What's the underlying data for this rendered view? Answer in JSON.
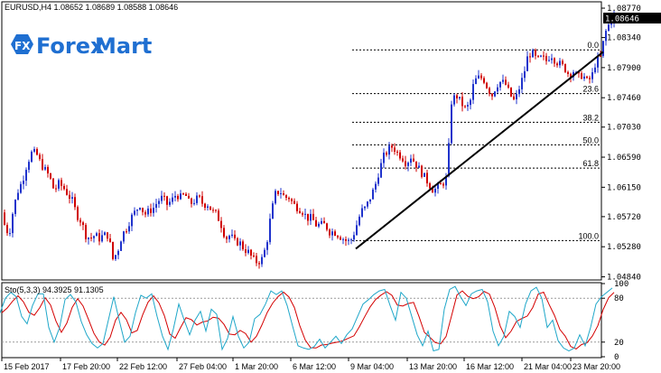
{
  "symbol_header": "EURUSD,H4  1.08652 1.08689 1.08588 1.08646",
  "logo": {
    "mark": "FX",
    "brand_a": "Forex",
    "brand_b": "Mart"
  },
  "current_price": "1.08646",
  "colors": {
    "up": "#1f33cc",
    "down": "#d00000",
    "main_line": "#1fa7c9",
    "signal_line": "#d40000",
    "trendline": "#000000",
    "logo_blue": "#1f6fd1"
  },
  "price_axis": [
    "1.08770",
    "1.08340",
    "1.07900",
    "1.07460",
    "1.07030",
    "1.06590",
    "1.06150",
    "1.05720",
    "1.05280",
    "1.04840"
  ],
  "fib_levels": [
    {
      "label": "0.0",
      "value": 1.0816
    },
    {
      "label": "23.6",
      "value": 1.0752
    },
    {
      "label": "38.2",
      "value": 1.071
    },
    {
      "label": "50.0",
      "value": 1.0677
    },
    {
      "label": "61.8",
      "value": 1.0643
    },
    {
      "label": "100.0",
      "value": 1.0537
    }
  ],
  "stochastic": {
    "label": "Sto(5,3,3) 94.3925 91.1305",
    "axis": [
      "100",
      "80",
      "20",
      "0"
    ]
  },
  "time_axis": [
    "15 Feb 2017",
    "17 Feb 20:00",
    "22 Feb 12:00",
    "27 Feb 04:00",
    "1 Mar 20:00",
    "6 Mar 12:00",
    "9 Mar 04:00",
    "13 Mar 20:00",
    "16 Mar 12:00",
    "21 Mar 04:00",
    "23 Mar 20:00"
  ],
  "chart_data": {
    "type": "candlestick",
    "symbol": "EURUSD",
    "timeframe": "H4",
    "ylim": [
      1.0482,
      1.0881
    ],
    "last_bar": {
      "open": 1.08652,
      "high": 1.08689,
      "low": 1.08588,
      "close": 1.08646
    },
    "close_path": [
      [
        0,
        1.059
      ],
      [
        5,
        1.056
      ],
      [
        10,
        1.0545
      ],
      [
        15,
        1.0585
      ],
      [
        20,
        1.061
      ],
      [
        25,
        1.0625
      ],
      [
        30,
        1.065
      ],
      [
        35,
        1.0665
      ],
      [
        40,
        1.0665
      ],
      [
        45,
        1.065
      ],
      [
        50,
        1.064
      ],
      [
        55,
        1.063
      ],
      [
        60,
        1.061
      ],
      [
        65,
        1.062
      ],
      [
        70,
        1.0615
      ],
      [
        75,
        1.0605
      ],
      [
        80,
        1.0595
      ],
      [
        85,
        1.0575
      ],
      [
        90,
        1.0565
      ],
      [
        95,
        1.0545
      ],
      [
        100,
        1.054
      ],
      [
        105,
        1.0545
      ],
      [
        110,
        1.054
      ],
      [
        115,
        1.0545
      ],
      [
        120,
        1.0545
      ],
      [
        125,
        1.051
      ],
      [
        130,
        1.052
      ],
      [
        135,
        1.0545
      ],
      [
        140,
        1.0555
      ],
      [
        145,
        1.057
      ],
      [
        150,
        1.058
      ],
      [
        155,
        1.059
      ],
      [
        160,
        1.0575
      ],
      [
        165,
        1.058
      ],
      [
        170,
        1.0585
      ],
      [
        175,
        1.0595
      ],
      [
        180,
        1.06
      ],
      [
        185,
        1.059
      ],
      [
        190,
        1.0595
      ],
      [
        195,
        1.0605
      ],
      [
        200,
        1.06
      ],
      [
        205,
        1.0605
      ],
      [
        210,
        1.059
      ],
      [
        215,
        1.0595
      ],
      [
        220,
        1.06
      ],
      [
        225,
        1.059
      ],
      [
        230,
        1.059
      ],
      [
        235,
        1.058
      ],
      [
        240,
        1.0575
      ],
      [
        245,
        1.056
      ],
      [
        250,
        1.054
      ],
      [
        255,
        1.0545
      ],
      [
        260,
        1.0535
      ],
      [
        265,
        1.0535
      ],
      [
        270,
        1.0525
      ],
      [
        275,
        1.052
      ],
      [
        280,
        1.051
      ],
      [
        285,
        1.0505
      ],
      [
        290,
        1.051
      ],
      [
        295,
        1.053
      ],
      [
        300,
        1.0575
      ],
      [
        305,
        1.0605
      ],
      [
        310,
        1.061
      ],
      [
        315,
        1.06
      ],
      [
        320,
        1.06
      ],
      [
        325,
        1.059
      ],
      [
        330,
        1.0585
      ],
      [
        335,
        1.058
      ],
      [
        340,
        1.057
      ],
      [
        345,
        1.057
      ],
      [
        350,
        1.056
      ],
      [
        355,
        1.056
      ],
      [
        360,
        1.056
      ],
      [
        365,
        1.055
      ],
      [
        370,
        1.055
      ],
      [
        375,
        1.0545
      ],
      [
        380,
        1.054
      ],
      [
        385,
        1.0535
      ],
      [
        390,
        1.054
      ],
      [
        395,
        1.056
      ],
      [
        400,
        1.058
      ],
      [
        405,
        1.0585
      ],
      [
        410,
        1.06
      ],
      [
        415,
        1.0615
      ],
      [
        420,
        1.064
      ],
      [
        425,
        1.066
      ],
      [
        430,
        1.067
      ],
      [
        435,
        1.0675
      ],
      [
        440,
        1.0665
      ],
      [
        445,
        1.066
      ],
      [
        450,
        1.065
      ],
      [
        455,
        1.066
      ],
      [
        460,
        1.065
      ],
      [
        465,
        1.064
      ],
      [
        470,
        1.063
      ],
      [
        475,
        1.062
      ],
      [
        480,
        1.061
      ],
      [
        485,
        1.0615
      ],
      [
        490,
        1.062
      ],
      [
        495,
        1.063
      ],
      [
        500,
        1.074
      ],
      [
        505,
        1.075
      ],
      [
        510,
        1.074
      ],
      [
        515,
        1.073
      ],
      [
        520,
        1.0735
      ],
      [
        525,
        1.077
      ],
      [
        530,
        1.0775
      ],
      [
        535,
        1.0775
      ],
      [
        540,
        1.076
      ],
      [
        545,
        1.075
      ],
      [
        550,
        1.0765
      ],
      [
        555,
        1.077
      ],
      [
        560,
        1.0765
      ],
      [
        565,
        1.075
      ],
      [
        570,
        1.074
      ],
      [
        575,
        1.076
      ],
      [
        580,
        1.078
      ],
      [
        585,
        1.081
      ],
      [
        590,
        1.081
      ],
      [
        595,
        1.08
      ],
      [
        600,
        1.0805
      ],
      [
        605,
        1.08
      ],
      [
        610,
        1.081
      ],
      [
        615,
        1.08
      ],
      [
        620,
        1.0795
      ],
      [
        625,
        1.079
      ],
      [
        630,
        1.078
      ],
      [
        635,
        1.0785
      ],
      [
        640,
        1.0775
      ],
      [
        645,
        1.078
      ],
      [
        650,
        1.077
      ],
      [
        655,
        1.0775
      ],
      [
        660,
        1.08
      ],
      [
        665,
        1.0805
      ],
      [
        670,
        1.084
      ],
      [
        675,
        1.0855
      ],
      [
        680,
        1.0865
      ]
    ],
    "trendline": [
      [
        394,
        1.0525
      ],
      [
        668,
        1.0813
      ]
    ],
    "stochastic_main": [
      [
        0,
        60
      ],
      [
        6,
        80
      ],
      [
        12,
        88
      ],
      [
        18,
        82
      ],
      [
        24,
        55
      ],
      [
        30,
        45
      ],
      [
        36,
        70
      ],
      [
        42,
        86
      ],
      [
        48,
        86
      ],
      [
        54,
        40
      ],
      [
        60,
        20
      ],
      [
        66,
        40
      ],
      [
        72,
        78
      ],
      [
        78,
        85
      ],
      [
        84,
        75
      ],
      [
        90,
        48
      ],
      [
        96,
        30
      ],
      [
        102,
        18
      ],
      [
        108,
        12
      ],
      [
        114,
        18
      ],
      [
        120,
        50
      ],
      [
        126,
        82
      ],
      [
        132,
        50
      ],
      [
        138,
        20
      ],
      [
        144,
        28
      ],
      [
        150,
        60
      ],
      [
        156,
        84
      ],
      [
        162,
        80
      ],
      [
        168,
        86
      ],
      [
        174,
        55
      ],
      [
        180,
        28
      ],
      [
        186,
        10
      ],
      [
        192,
        38
      ],
      [
        198,
        72
      ],
      [
        204,
        50
      ],
      [
        210,
        30
      ],
      [
        216,
        50
      ],
      [
        222,
        62
      ],
      [
        228,
        35
      ],
      [
        234,
        65
      ],
      [
        240,
        58
      ],
      [
        246,
        10
      ],
      [
        252,
        25
      ],
      [
        258,
        55
      ],
      [
        264,
        28
      ],
      [
        270,
        12
      ],
      [
        276,
        20
      ],
      [
        282,
        52
      ],
      [
        288,
        58
      ],
      [
        294,
        72
      ],
      [
        300,
        90
      ],
      [
        306,
        85
      ],
      [
        312,
        90
      ],
      [
        318,
        70
      ],
      [
        324,
        42
      ],
      [
        330,
        15
      ],
      [
        336,
        12
      ],
      [
        342,
        10
      ],
      [
        348,
        14
      ],
      [
        354,
        24
      ],
      [
        360,
        12
      ],
      [
        366,
        20
      ],
      [
        372,
        28
      ],
      [
        378,
        18
      ],
      [
        384,
        30
      ],
      [
        390,
        38
      ],
      [
        396,
        55
      ],
      [
        402,
        72
      ],
      [
        408,
        78
      ],
      [
        414,
        85
      ],
      [
        420,
        90
      ],
      [
        426,
        92
      ],
      [
        432,
        70
      ],
      [
        438,
        50
      ],
      [
        444,
        88
      ],
      [
        450,
        80
      ],
      [
        456,
        55
      ],
      [
        462,
        30
      ],
      [
        468,
        15
      ],
      [
        474,
        35
      ],
      [
        480,
        8
      ],
      [
        486,
        10
      ],
      [
        492,
        65
      ],
      [
        498,
        92
      ],
      [
        504,
        96
      ],
      [
        510,
        82
      ],
      [
        516,
        70
      ],
      [
        522,
        86
      ],
      [
        528,
        90
      ],
      [
        534,
        92
      ],
      [
        540,
        75
      ],
      [
        546,
        35
      ],
      [
        552,
        15
      ],
      [
        558,
        28
      ],
      [
        564,
        62
      ],
      [
        570,
        55
      ],
      [
        576,
        40
      ],
      [
        582,
        72
      ],
      [
        588,
        90
      ],
      [
        594,
        95
      ],
      [
        600,
        80
      ],
      [
        606,
        40
      ],
      [
        612,
        50
      ],
      [
        618,
        22
      ],
      [
        624,
        12
      ],
      [
        630,
        8
      ],
      [
        636,
        12
      ],
      [
        642,
        30
      ],
      [
        648,
        15
      ],
      [
        654,
        40
      ],
      [
        660,
        72
      ],
      [
        666,
        82
      ],
      [
        672,
        88
      ],
      [
        678,
        94
      ]
    ]
  }
}
